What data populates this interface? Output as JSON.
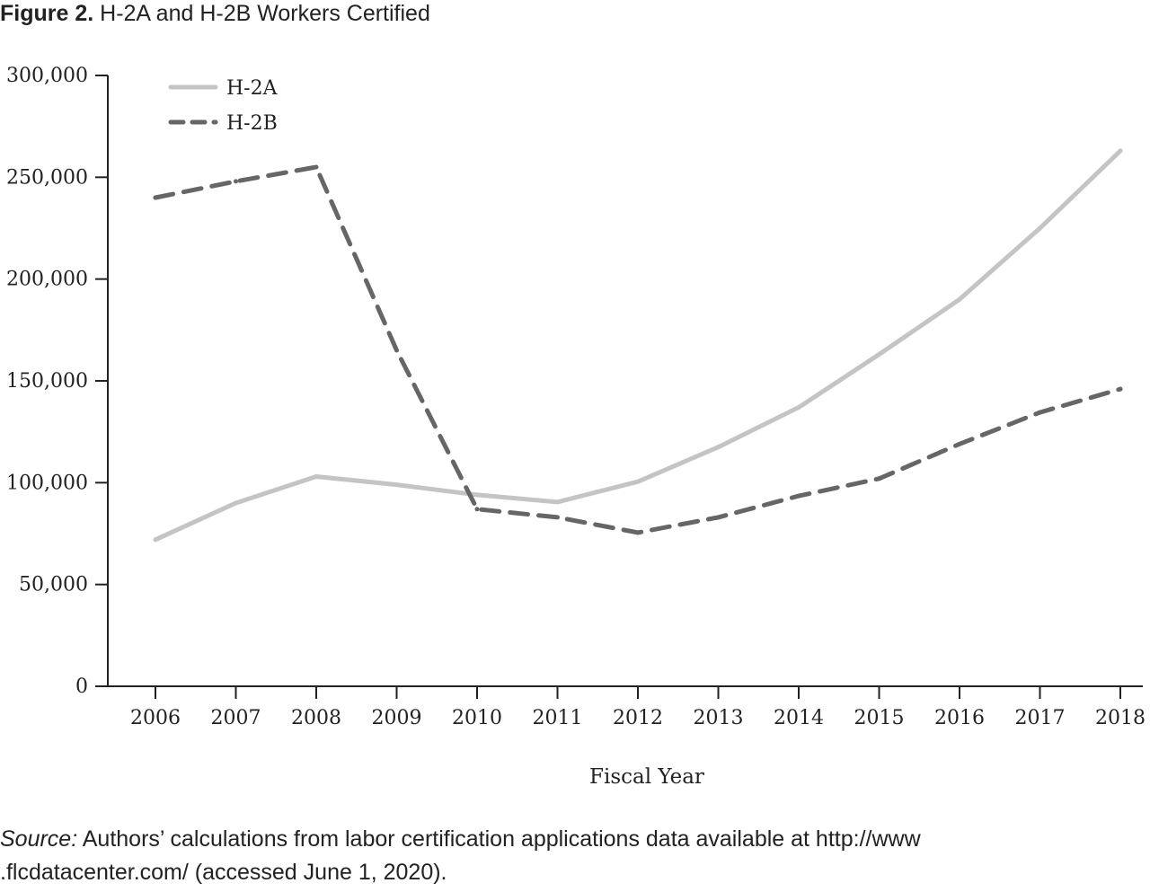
{
  "figure": {
    "label": "Figure 2.",
    "title": "H-2A and H-2B Workers Certified"
  },
  "source": {
    "label": "Source:",
    "line1": "Authors’ calculations from labor certification applications data available at http://www",
    "line2": ".flcdatacenter.com/ (accessed June 1, 2020)."
  },
  "chart_data": {
    "type": "line",
    "title": "H-2A and H-2B Workers Certified",
    "xlabel": "Fiscal Year",
    "ylabel": "",
    "x": [
      "2006",
      "2007",
      "2008",
      "2009",
      "2010",
      "2011",
      "2012",
      "2013",
      "2014",
      "2015",
      "2016",
      "2017",
      "2018"
    ],
    "ylim": [
      0,
      300000
    ],
    "yticks": [
      0,
      50000,
      100000,
      150000,
      200000,
      250000,
      300000
    ],
    "ytick_labels": [
      "0",
      "50,000",
      "100,000",
      "150,000",
      "200,000",
      "250,000",
      "300,000"
    ],
    "grid": false,
    "legend_position": "top-left",
    "series": [
      {
        "name": "H-2A",
        "style": "solid",
        "color": "#c4c4c4",
        "values": [
          72000,
          90000,
          103000,
          99000,
          94000,
          90500,
          100500,
          117500,
          137000,
          163000,
          190000,
          225000,
          263000
        ]
      },
      {
        "name": "H-2B",
        "style": "dashed",
        "color": "#666666",
        "values": [
          240000,
          248000,
          255000,
          165000,
          87000,
          83000,
          75500,
          83000,
          93500,
          102000,
          119000,
          134500,
          146000
        ]
      }
    ]
  }
}
